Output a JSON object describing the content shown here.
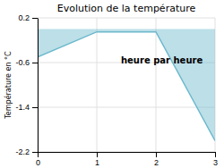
{
  "chart_data": {
    "type": "area",
    "title": "Evolution de la température",
    "y_label": "Température en °C",
    "annotations": [
      "heure par heure"
    ],
    "x": [
      0,
      1,
      2,
      3
    ],
    "values": [
      -0.5,
      -0.05,
      -0.05,
      -2.0
    ],
    "baseline": 0.0,
    "color": "#6bb8cc",
    "xlim": [
      0,
      3
    ],
    "ylim": [
      -2.2,
      0.2
    ],
    "xticks": [
      0,
      1,
      2,
      3
    ],
    "yticks": [
      0.2,
      -0.6,
      -1.4,
      -2.2
    ],
    "grid": true
  }
}
